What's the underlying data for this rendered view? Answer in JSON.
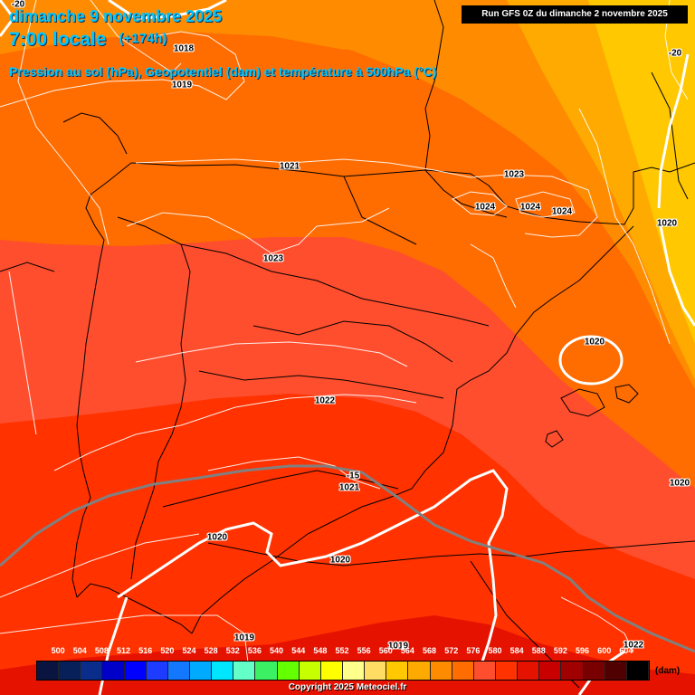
{
  "header": {
    "date_line": "dimanche 9 novembre 2025",
    "time_line": "7:00 locale",
    "offset": "(+174h)",
    "description": "Pression au sol (hPa), Geopotentiel (dam) et température à 500hPa (°C)"
  },
  "run_info": "Run GFS 0Z du dimanche 2 novembre 2025",
  "isobar_labels": [
    "1019",
    "1018",
    "1021",
    "1023",
    "1023",
    "1024",
    "1024",
    "1024",
    "1020",
    "1020",
    "1022",
    "1021",
    "1020",
    "1020",
    "1020",
    "1019",
    "1019",
    "1022"
  ],
  "temperature_labels": [
    "-20",
    "-20",
    "-15"
  ],
  "colors": {
    "geo_564": "#ffaa00",
    "geo_568": "#ff8c00",
    "geo_572": "#ff6c00",
    "geo_576": "#ff4e2e",
    "geo_580": "#ff3200",
    "geo_584": "#e61200",
    "geo_560": "#ffc800"
  },
  "legend": {
    "values": [
      "500",
      "504",
      "508",
      "512",
      "516",
      "520",
      "524",
      "528",
      "532",
      "536",
      "540",
      "544",
      "548",
      "552",
      "556",
      "560",
      "564",
      "568",
      "572",
      "576",
      "580",
      "584",
      "588",
      "592",
      "596",
      "600",
      "604"
    ],
    "colors": [
      "#0a1440",
      "#08205a",
      "#0a2c8a",
      "#0000c8",
      "#0000ff",
      "#1e3cff",
      "#1478ff",
      "#00aaff",
      "#00e6ff",
      "#64ffc8",
      "#3cf064",
      "#64ff00",
      "#c8ff00",
      "#ffff00",
      "#ffff8c",
      "#ffdc64",
      "#ffc800",
      "#ffaa00",
      "#ff8c00",
      "#ff6c00",
      "#ff4e2e",
      "#ff3200",
      "#e61200",
      "#c80000",
      "#a00000",
      "#780000",
      "#500000",
      "#000000"
    ],
    "unit": "(dam)"
  },
  "copyright": "Copyright 2025 Meteociel.fr"
}
